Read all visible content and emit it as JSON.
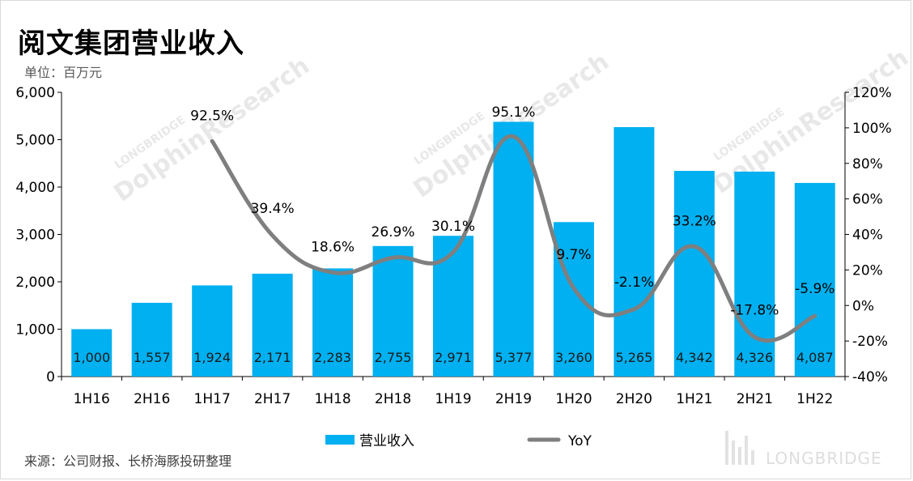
{
  "title": "阅文集团营业收入",
  "unit_label": "单位：百万元",
  "source": "来源：公司财报、长桥海豚投研整理",
  "watermark": {
    "text_main": "DolphinResearch",
    "text_small": "LONGBRIDGE",
    "logo_text": "LONGBRIDGE"
  },
  "colors": {
    "bar": "#00b0f0",
    "line": "#7f7f7f"
  },
  "chart_data": {
    "type": "bar+line",
    "categories": [
      "1H16",
      "2H16",
      "1H17",
      "2H17",
      "1H18",
      "2H18",
      "1H19",
      "2H19",
      "1H20",
      "2H20",
      "1H21",
      "2H21",
      "1H22"
    ],
    "series": [
      {
        "name": "营业收入",
        "type": "bar",
        "axis": "left",
        "values": [
          1000,
          1557,
          1924,
          2171,
          2283,
          2755,
          2971,
          5377,
          3260,
          5265,
          4342,
          4326,
          4087
        ],
        "labels": [
          "1,000",
          "1,557",
          "1,924",
          "2,171",
          "2,283",
          "2,755",
          "2,971",
          "5,377",
          "3,260",
          "5,265",
          "4,342",
          "4,326",
          "4,087"
        ]
      },
      {
        "name": "YoY",
        "type": "line",
        "axis": "right",
        "values": [
          null,
          null,
          92.5,
          39.4,
          18.6,
          26.9,
          30.1,
          95.1,
          9.7,
          -2.1,
          33.2,
          -17.8,
          -5.9
        ],
        "labels": [
          "",
          "",
          "92.5%",
          "39.4%",
          "18.6%",
          "26.9%",
          "30.1%",
          "95.1%",
          "9.7%",
          "-2.1%",
          "33.2%",
          "-17.8%",
          "-5.9%"
        ]
      }
    ],
    "y_left": {
      "range": [
        0,
        6000
      ],
      "ticks": [
        0,
        1000,
        2000,
        3000,
        4000,
        5000,
        6000
      ],
      "tick_labels": [
        "0",
        "1,000",
        "2,000",
        "3,000",
        "4,000",
        "5,000",
        "6,000"
      ]
    },
    "y_right": {
      "range": [
        -40,
        120
      ],
      "ticks": [
        -40,
        -20,
        0,
        20,
        40,
        60,
        80,
        100,
        120
      ],
      "tick_labels": [
        "-40%",
        "-20%",
        "0%",
        "20%",
        "40%",
        "60%",
        "80%",
        "100%",
        "120%"
      ]
    },
    "grid": false,
    "legend": "bottom",
    "legend_items": [
      "营业收入",
      "YoY"
    ]
  }
}
